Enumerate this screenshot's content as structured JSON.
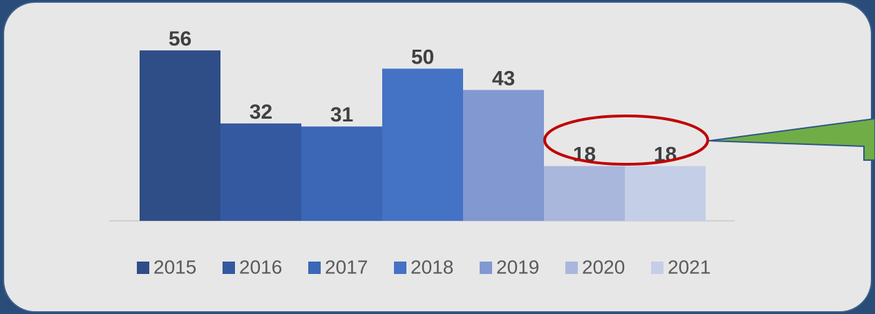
{
  "chart_data": {
    "type": "bar",
    "series": [
      {
        "name": "2015",
        "color": "#2f4d87",
        "values": [
          56
        ]
      },
      {
        "name": "2016",
        "color": "#3459a0",
        "values": [
          32
        ]
      },
      {
        "name": "2017",
        "color": "#3b67b6",
        "values": [
          31
        ]
      },
      {
        "name": "2018",
        "color": "#4472c4",
        "values": [
          50
        ]
      },
      {
        "name": "2019",
        "color": "#8198d1",
        "values": [
          43
        ]
      },
      {
        "name": "2020",
        "color": "#a9b7dc",
        "values": [
          18
        ]
      },
      {
        "name": "2021",
        "color": "#c4cee7",
        "values": [
          18
        ]
      }
    ],
    "ylim": [
      0,
      60
    ],
    "grid": false,
    "legend": "bottom"
  }
}
